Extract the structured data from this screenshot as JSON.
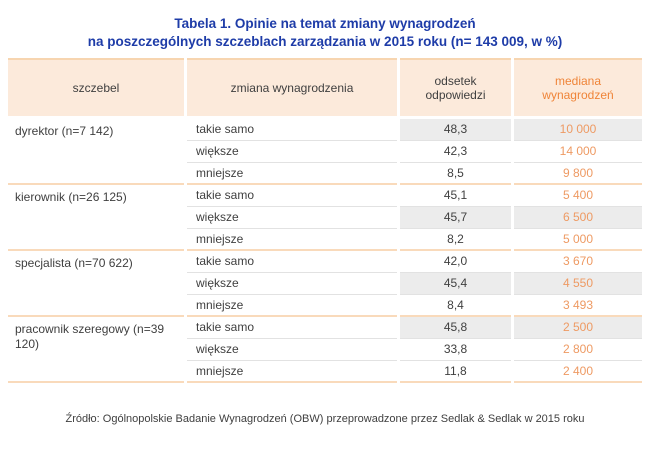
{
  "title": {
    "line1": "Tabela 1. Opinie na temat zmiany wynagrodzeń",
    "line2": "na poszczególnych szczeblach zarządzania w 2015 roku (n= 143 009, w %)"
  },
  "table": {
    "columns": [
      "szczebel",
      "zmiana wynagrodzenia",
      "odsetek odpowiedzi",
      "mediana wynagrodzeń"
    ],
    "groups": [
      {
        "level": "dyrektor (n=7 142)",
        "rows": [
          {
            "change": "takie samo",
            "percent": "48,3",
            "median": "10 000",
            "highlight": true
          },
          {
            "change": "większe",
            "percent": "42,3",
            "median": "14 000",
            "highlight": false
          },
          {
            "change": "mniejsze",
            "percent": "8,5",
            "median": "9 800",
            "highlight": false
          }
        ]
      },
      {
        "level": "kierownik (n=26 125)",
        "rows": [
          {
            "change": "takie samo",
            "percent": "45,1",
            "median": "5 400",
            "highlight": false
          },
          {
            "change": "większe",
            "percent": "45,7",
            "median": "6 500",
            "highlight": true
          },
          {
            "change": "mniejsze",
            "percent": "8,2",
            "median": "5 000",
            "highlight": false
          }
        ]
      },
      {
        "level": "specjalista (n=70 622)",
        "rows": [
          {
            "change": "takie samo",
            "percent": "42,0",
            "median": "3 670",
            "highlight": false
          },
          {
            "change": "większe",
            "percent": "45,4",
            "median": "4 550",
            "highlight": true
          },
          {
            "change": "mniejsze",
            "percent": "8,4",
            "median": "3 493",
            "highlight": false
          }
        ]
      },
      {
        "level": "pracownik szeregowy (n=39 120)",
        "rows": [
          {
            "change": "takie samo",
            "percent": "45,8",
            "median": "2 500",
            "highlight": true
          },
          {
            "change": "większe",
            "percent": "33,8",
            "median": "2 800",
            "highlight": false
          },
          {
            "change": "mniejsze",
            "percent": "11,8",
            "median": "2 400",
            "highlight": false
          }
        ]
      }
    ]
  },
  "footer": "Źródło: Ogólnopolskie Badanie Wynagrodzeń (OBW) przeprowadzone przez Sedlak & Sedlak w 2015 roku",
  "colors": {
    "title-blue": "#1e3ca8",
    "header-bg": "#fceadb",
    "border-strong": "#f7d5b0",
    "border-peach": "#f9dabb",
    "accent-orange": "#ef8438",
    "median-orange": "#ee9a63",
    "text-dark": "#3f3f3f",
    "highlight-gray": "#ececec",
    "row-line": "#e2e2e2"
  },
  "chart_data": {
    "type": "table",
    "title": "Tabela 1. Opinie na temat zmiany wynagrodzeń na poszczególnych szczeblach zarządzania w 2015 roku (n= 143 009, w %)",
    "columns": [
      "szczebel",
      "zmiana wynagrodzenia",
      "odsetek odpowiedzi",
      "mediana wynagrodzeń"
    ],
    "rows": [
      [
        "dyrektor (n=7 142)",
        "takie samo",
        48.3,
        10000
      ],
      [
        "dyrektor (n=7 142)",
        "większe",
        42.3,
        14000
      ],
      [
        "dyrektor (n=7 142)",
        "mniejsze",
        8.5,
        9800
      ],
      [
        "kierownik (n=26 125)",
        "takie samo",
        45.1,
        5400
      ],
      [
        "kierownik (n=26 125)",
        "większe",
        45.7,
        6500
      ],
      [
        "kierownik (n=26 125)",
        "mniejsze",
        8.2,
        5000
      ],
      [
        "specjalista (n=70 622)",
        "takie samo",
        42.0,
        3670
      ],
      [
        "specjalista (n=70 622)",
        "większe",
        45.4,
        4550
      ],
      [
        "specjalista (n=70 622)",
        "mniejsze",
        8.4,
        3493
      ],
      [
        "pracownik szeregowy (n=39 120)",
        "takie samo",
        45.8,
        2500
      ],
      [
        "pracownik szeregowy (n=39 120)",
        "większe",
        33.8,
        2800
      ],
      [
        "pracownik szeregowy (n=39 120)",
        "mniejsze",
        11.8,
        2400
      ]
    ],
    "highlighted_rows": [
      0,
      4,
      7,
      9
    ],
    "source": "Źródło: Ogólnopolskie Badanie Wynagrodzeń (OBW) przeprowadzone przez Sedlak & Sedlak w 2015 roku"
  }
}
